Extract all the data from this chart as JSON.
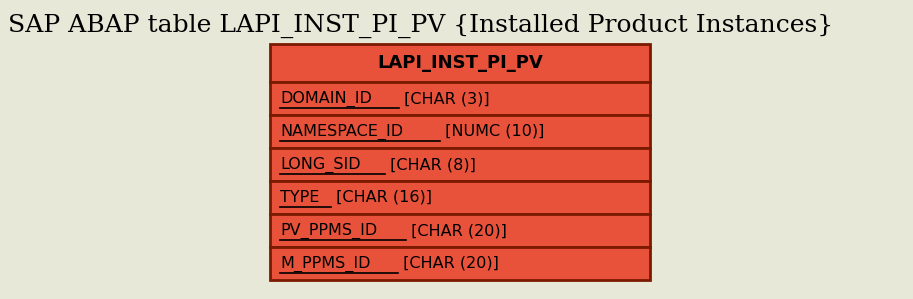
{
  "title": "SAP ABAP table LAPI_INST_PI_PV {Installed Product Instances}",
  "title_fontsize": 18,
  "entity_name": "LAPI_INST_PI_PV",
  "fields": [
    "DOMAIN_ID [CHAR (3)]",
    "NAMESPACE_ID [NUMC (10)]",
    "LONG_SID [CHAR (8)]",
    "TYPE [CHAR (16)]",
    "PV_PPMS_ID [CHAR (20)]",
    "M_PPMS_ID [CHAR (20)]"
  ],
  "underlined_parts": [
    "DOMAIN_ID",
    "NAMESPACE_ID",
    "LONG_SID",
    "TYPE",
    "PV_PPMS_ID",
    "M_PPMS_ID"
  ],
  "header_bg": "#e8523a",
  "row_bg": "#e8523a",
  "border_color": "#7a1a00",
  "text_color": "#000000",
  "background_color": "#e8e8d8",
  "header_fontsize": 13,
  "field_fontsize": 11.5
}
